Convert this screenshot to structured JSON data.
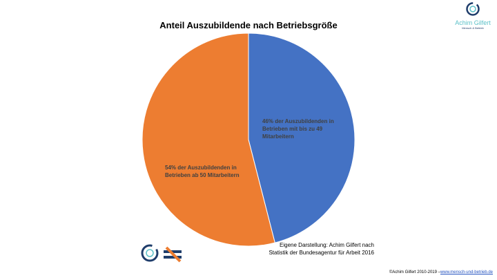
{
  "chart_data": {
    "type": "pie",
    "title": "Anteil Auszubildende nach Betriebsgröße",
    "slices": [
      {
        "label": "46% der Auszubildenden in Betrieben mit bis zu 49 Mitarbeitern",
        "value": 46,
        "color": "#4472C4"
      },
      {
        "label": "54% der Auszubildenden in Betrieben ab 50 Mitarbeitern",
        "value": 54,
        "color": "#ED7D31"
      }
    ]
  },
  "source": {
    "line1": "Eigene Darstellung: Achim Gilfert nach",
    "line2": "Statistik der Bundesagentur für Arbeit 2016"
  },
  "footer": {
    "copyright": "©Achim Gilfert 2010-2019 –",
    "link": "www.mensch-und-betrieb.de"
  },
  "logo": {
    "name": "Achim Gilfert",
    "subtitle": "Mensch & Betrieb"
  }
}
